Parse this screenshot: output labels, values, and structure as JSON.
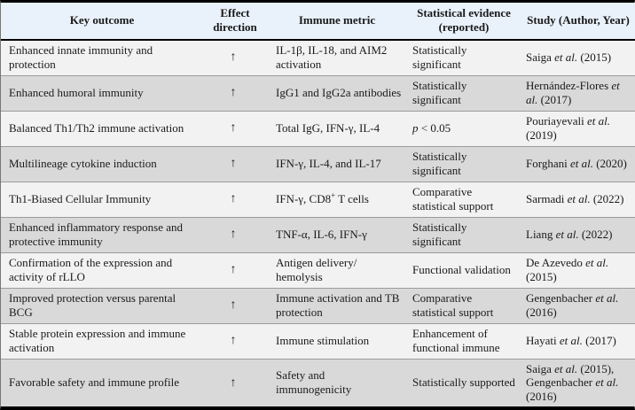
{
  "colors": {
    "header_bg": "#e9f1fb",
    "row_light": "#f2f2f2",
    "row_dark": "#d9d9d9",
    "row_divider": "#9b9b9b",
    "border_dark": "#000000",
    "text": "#1a1a1a"
  },
  "table": {
    "columns": [
      "Key outcome",
      "Effect direction",
      "Immune metric",
      "Statistical evidence (reported)",
      "Study (Author, Year)"
    ],
    "rows": [
      {
        "outcome": "Enhanced innate immunity and protection",
        "direction": "↑",
        "metric": "IL-1β, IL-18, and AIM2 activation",
        "evidence": "Statistically significant",
        "study": [
          {
            "t": "Saiga "
          },
          {
            "t": "et al.",
            "i": true
          },
          {
            "t": " (2015)"
          }
        ]
      },
      {
        "outcome": "Enhanced humoral immunity",
        "direction": "↑",
        "metric": "IgG1 and IgG2a antibodies",
        "evidence": "Statistically significant",
        "study": [
          {
            "t": "Hernández-Flores "
          },
          {
            "t": "et al.",
            "i": true
          },
          {
            "t": " (2017)"
          }
        ]
      },
      {
        "outcome": "Balanced Th1/Th2 immune activation",
        "direction": "↑",
        "metric": "Total IgG, IFN-γ, IL-4",
        "evidence": [
          {
            "t": "p",
            "i": true
          },
          {
            "t": " < 0.05"
          }
        ],
        "study": [
          {
            "t": "Pouriayevali "
          },
          {
            "t": "et al.",
            "i": true
          },
          {
            "t": " (2019)"
          }
        ]
      },
      {
        "outcome": "Multilineage cytokine induction",
        "direction": "↑",
        "metric": "IFN-γ, IL-4, and IL-17",
        "evidence": "Statistically significant",
        "study": [
          {
            "t": "Forghani "
          },
          {
            "t": "et al.",
            "i": true
          },
          {
            "t": " (2020)"
          }
        ]
      },
      {
        "outcome": "Th1-Biased Cellular Immunity",
        "direction": "↑",
        "metric": [
          {
            "t": "IFN-γ, CD8"
          },
          {
            "t": "+",
            "sup": true
          },
          {
            "t": " T cells"
          }
        ],
        "evidence": "Comparative statistical support",
        "study": [
          {
            "t": "Sarmadi "
          },
          {
            "t": "et al.",
            "i": true
          },
          {
            "t": " (2022)"
          }
        ]
      },
      {
        "outcome": "Enhanced inflammatory response and protective immunity",
        "direction": "↑",
        "metric": "TNF-α, IL-6, IFN-γ",
        "evidence": "Statistically significant",
        "study": [
          {
            "t": "Liang "
          },
          {
            "t": "et al.",
            "i": true
          },
          {
            "t": " (2022)"
          }
        ]
      },
      {
        "outcome": "Confirmation of the expression and activity of rLLO",
        "direction": "↑",
        "metric": "Antigen delivery/ hemolysis",
        "evidence": "Functional validation",
        "study": [
          {
            "t": "De Azevedo "
          },
          {
            "t": "et al.",
            "i": true
          },
          {
            "t": " (2015)"
          }
        ]
      },
      {
        "outcome": "Improved protection versus parental BCG",
        "direction": "↑",
        "metric": "Immune activation and TB protection",
        "evidence": "Comparative statistical support",
        "study": [
          {
            "t": "Gengenbacher "
          },
          {
            "t": "et al.",
            "i": true
          },
          {
            "t": " (2016)"
          }
        ]
      },
      {
        "outcome": "Stable protein expression and immune activation",
        "direction": "↑",
        "metric": "Immune stimulation",
        "evidence": "Enhancement of functional immune",
        "study": [
          {
            "t": "Hayati "
          },
          {
            "t": "et al.",
            "i": true
          },
          {
            "t": " (2017)"
          }
        ]
      },
      {
        "outcome": "Favorable safety and immune profile",
        "direction": "↑",
        "metric": "Safety and immunogenicity",
        "evidence": "Statistically supported",
        "study": [
          {
            "t": "Saiga "
          },
          {
            "t": "et al.",
            "i": true
          },
          {
            "t": " (2015), Gengenbacher "
          },
          {
            "t": "et al.",
            "i": true
          },
          {
            "t": " (2016)"
          }
        ]
      }
    ]
  }
}
